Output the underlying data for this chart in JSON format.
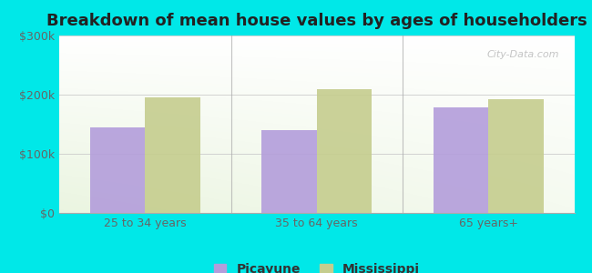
{
  "title": "Breakdown of mean house values by ages of householders",
  "categories": [
    "25 to 34 years",
    "35 to 64 years",
    "65 years+"
  ],
  "picayune_values": [
    145000,
    140000,
    178000
  ],
  "mississippi_values": [
    195000,
    210000,
    192000
  ],
  "picayune_color": "#b39ddb",
  "mississippi_color": "#c5cd8e",
  "ylim": [
    0,
    300000
  ],
  "yticks": [
    0,
    100000,
    200000,
    300000
  ],
  "ytick_labels": [
    "$0",
    "$100k",
    "$200k",
    "$300k"
  ],
  "legend_picayune": "Picayune",
  "legend_mississippi": "Mississippi",
  "background_outer": "#00e8e8",
  "bar_width": 0.32,
  "title_fontsize": 13,
  "tick_fontsize": 9,
  "legend_fontsize": 10,
  "watermark": "City-Data.com",
  "grid_color": "#cccccc",
  "divider_color": "#aaaaaa",
  "tick_color": "#666666"
}
